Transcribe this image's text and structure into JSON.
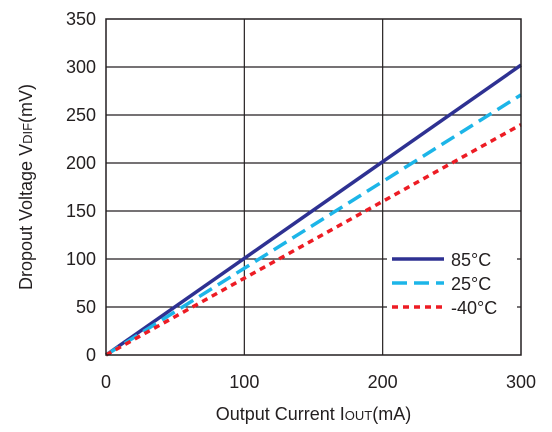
{
  "chart_data": {
    "type": "line",
    "xlabel_main": "Output Current I",
    "xlabel_sub": "OUT",
    "xlabel_unit": "(mA)",
    "ylabel_main": "Dropout Voltage V",
    "ylabel_sub": "DIF",
    "ylabel_unit": "(mV)",
    "xlim": [
      0,
      300
    ],
    "ylim": [
      0,
      350
    ],
    "x_ticks": [
      0,
      100,
      200,
      300
    ],
    "y_ticks": [
      0,
      50,
      100,
      150,
      200,
      250,
      300,
      350
    ],
    "x_tick_labels": [
      "0",
      "100",
      "200",
      "300"
    ],
    "y_tick_labels": [
      "0",
      "50",
      "100",
      "150",
      "200",
      "250",
      "300",
      "350"
    ],
    "grid": true,
    "legend_position": "bottom-right",
    "series": [
      {
        "name": "85°C",
        "color": "#2e3192",
        "dash": "solid",
        "x": [
          0,
          300
        ],
        "y": [
          0,
          302
        ]
      },
      {
        "name": "25°C",
        "color": "#1cb5e8",
        "dash": "long-dash",
        "x": [
          0,
          300
        ],
        "y": [
          0,
          271
        ]
      },
      {
        "name": "-40°C",
        "color": "#ed1c24",
        "dash": "short-dash",
        "x": [
          0,
          300
        ],
        "y": [
          0,
          240
        ]
      }
    ]
  }
}
